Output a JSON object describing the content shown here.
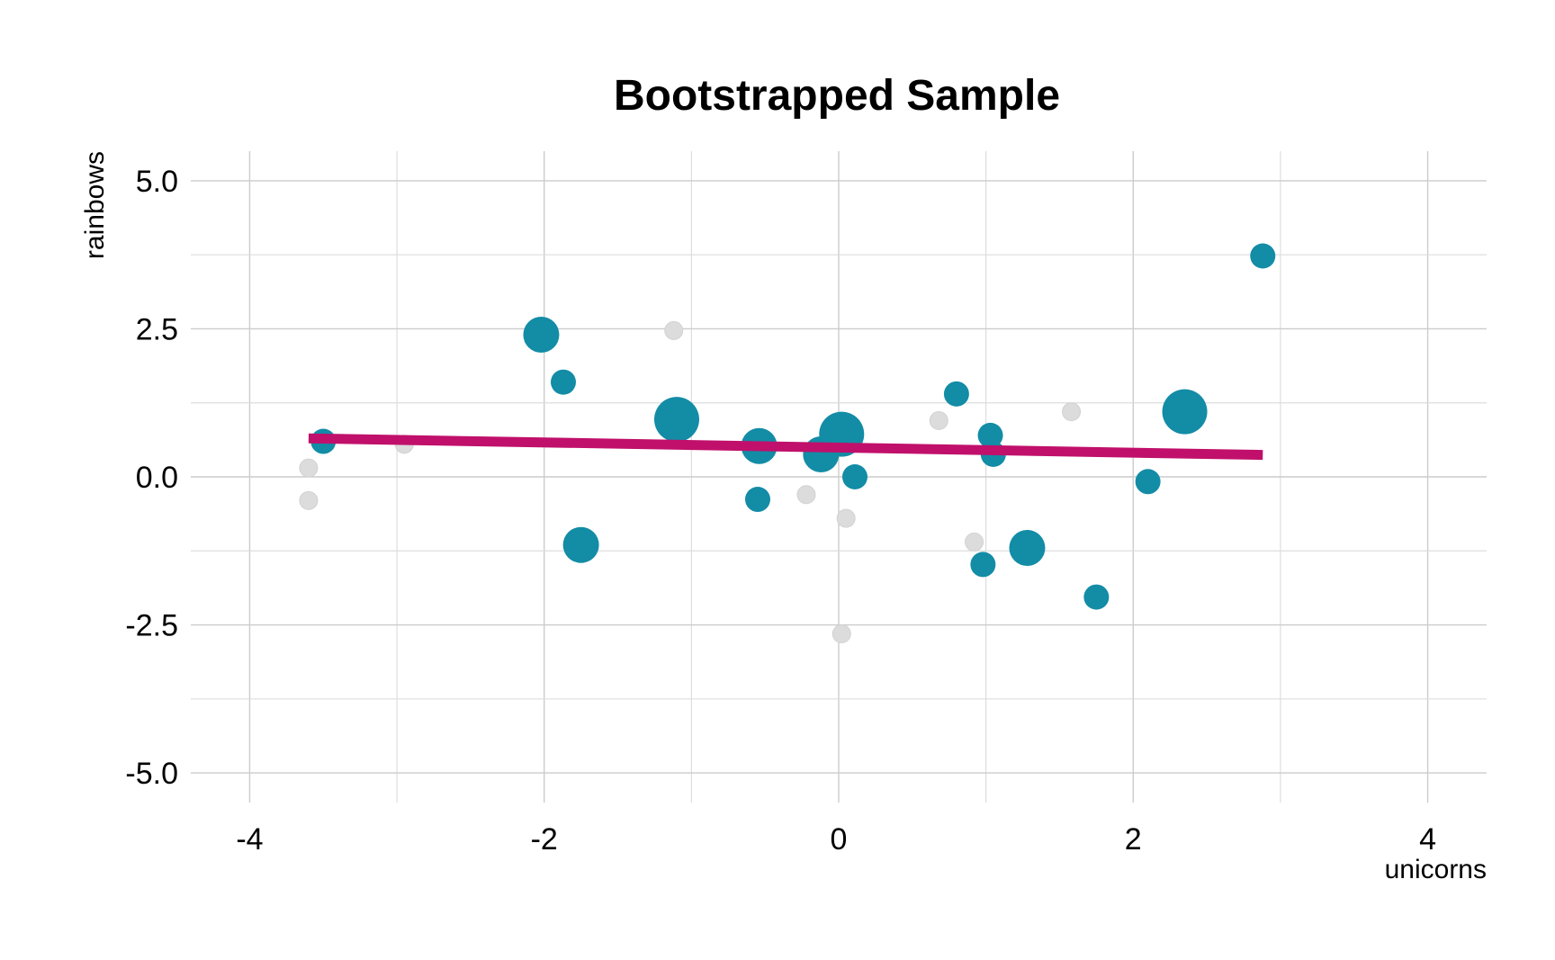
{
  "chart_data": {
    "type": "scatter",
    "title": "Bootstrapped Sample",
    "xlabel": "unicorns",
    "ylabel": "rainbows",
    "xlim": [
      -4.4,
      4.4
    ],
    "ylim": [
      -5.5,
      5.5
    ],
    "grid": true,
    "legend": "none",
    "x_ticks": [
      -4,
      -2,
      0,
      2,
      4
    ],
    "x_tick_labels": [
      "-4",
      "-2",
      "0",
      "2",
      "4"
    ],
    "y_ticks": [
      5.0,
      2.5,
      0.0,
      -2.5,
      -5.0
    ],
    "y_tick_labels": [
      "5.0",
      "2.5",
      "0.0",
      "-2.5",
      "-5.0"
    ],
    "colors": {
      "sampled": "#138ca6",
      "not_sampled": "#dcdcdc",
      "fit": "#c0106b"
    },
    "series": [
      {
        "role": "not_sampled",
        "points": [
          {
            "x": -3.6,
            "y": 0.15
          },
          {
            "x": -3.6,
            "y": -0.4
          },
          {
            "x": -2.95,
            "y": 0.55
          },
          {
            "x": -1.12,
            "y": 2.47
          },
          {
            "x": -0.22,
            "y": -0.3
          },
          {
            "x": 0.05,
            "y": -0.7
          },
          {
            "x": 0.02,
            "y": -2.65
          },
          {
            "x": 0.68,
            "y": 0.95
          },
          {
            "x": 0.92,
            "y": -1.1
          },
          {
            "x": 1.58,
            "y": 1.1
          }
        ]
      },
      {
        "role": "sampled",
        "points": [
          {
            "x": -3.5,
            "y": 0.6,
            "count": 1
          },
          {
            "x": -2.02,
            "y": 2.4,
            "count": 2
          },
          {
            "x": -1.87,
            "y": 1.6,
            "count": 1
          },
          {
            "x": -1.75,
            "y": -1.15,
            "count": 2
          },
          {
            "x": -1.1,
            "y": 0.97,
            "count": 3
          },
          {
            "x": -0.54,
            "y": 0.52,
            "count": 2
          },
          {
            "x": -0.55,
            "y": -0.38,
            "count": 1
          },
          {
            "x": -0.12,
            "y": 0.38,
            "count": 2
          },
          {
            "x": 0.02,
            "y": 0.72,
            "count": 3
          },
          {
            "x": 0.11,
            "y": 0.0,
            "count": 1
          },
          {
            "x": 0.8,
            "y": 1.4,
            "count": 1
          },
          {
            "x": 1.03,
            "y": 0.7,
            "count": 1
          },
          {
            "x": 1.05,
            "y": 0.38,
            "count": 1
          },
          {
            "x": 0.98,
            "y": -1.48,
            "count": 1
          },
          {
            "x": 1.28,
            "y": -1.2,
            "count": 2
          },
          {
            "x": 1.75,
            "y": -2.03,
            "count": 1
          },
          {
            "x": 2.1,
            "y": -0.08,
            "count": 1
          },
          {
            "x": 2.35,
            "y": 1.1,
            "count": 3
          },
          {
            "x": 2.88,
            "y": 3.73,
            "count": 1
          }
        ]
      }
    ],
    "fit_line": {
      "x": [
        -3.6,
        2.88
      ],
      "y": [
        0.65,
        0.37
      ]
    }
  }
}
